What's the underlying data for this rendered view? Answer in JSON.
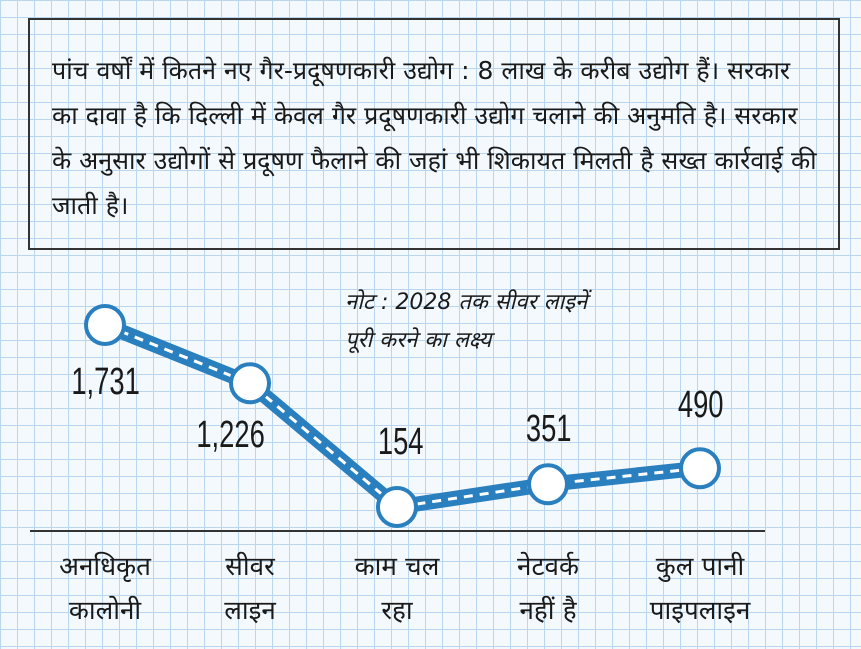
{
  "intro_text": "पांच वर्षों में कितने नए गैर-प्रदूषणकारी उद्योग : 8 लाख के करीब उद्योग हैं। सरकार का दावा है कि दिल्ली में केवल गैर प्रदूषणकारी उद्योग चलाने की अनुमति है। सरकार के अनुसार उद्योगों से प्रदूषण फैलाने की जहां भी शिकायत मिलती है सख्त कार्रवाई की जाती है।",
  "chart_data": {
    "type": "line",
    "categories": [
      [
        "अनधिकृत",
        "कालोनी"
      ],
      [
        "सीवर",
        "लाइन"
      ],
      [
        "काम चल",
        "रहा"
      ],
      [
        "नेटवर्क",
        "नहीं है"
      ],
      [
        "कुल पानी",
        "पाइपलाइन"
      ]
    ],
    "values": [
      1731,
      1226,
      154,
      351,
      490
    ],
    "value_labels": [
      "1,731",
      "1,226",
      "154",
      "351",
      "490"
    ],
    "annotation": [
      "नोट : 2028 तक सीवर लाइनें",
      "पूरी करने का लक्ष्य"
    ],
    "line_color": "#2a7fbf",
    "marker_fill": "#ffffff",
    "grid": true
  }
}
